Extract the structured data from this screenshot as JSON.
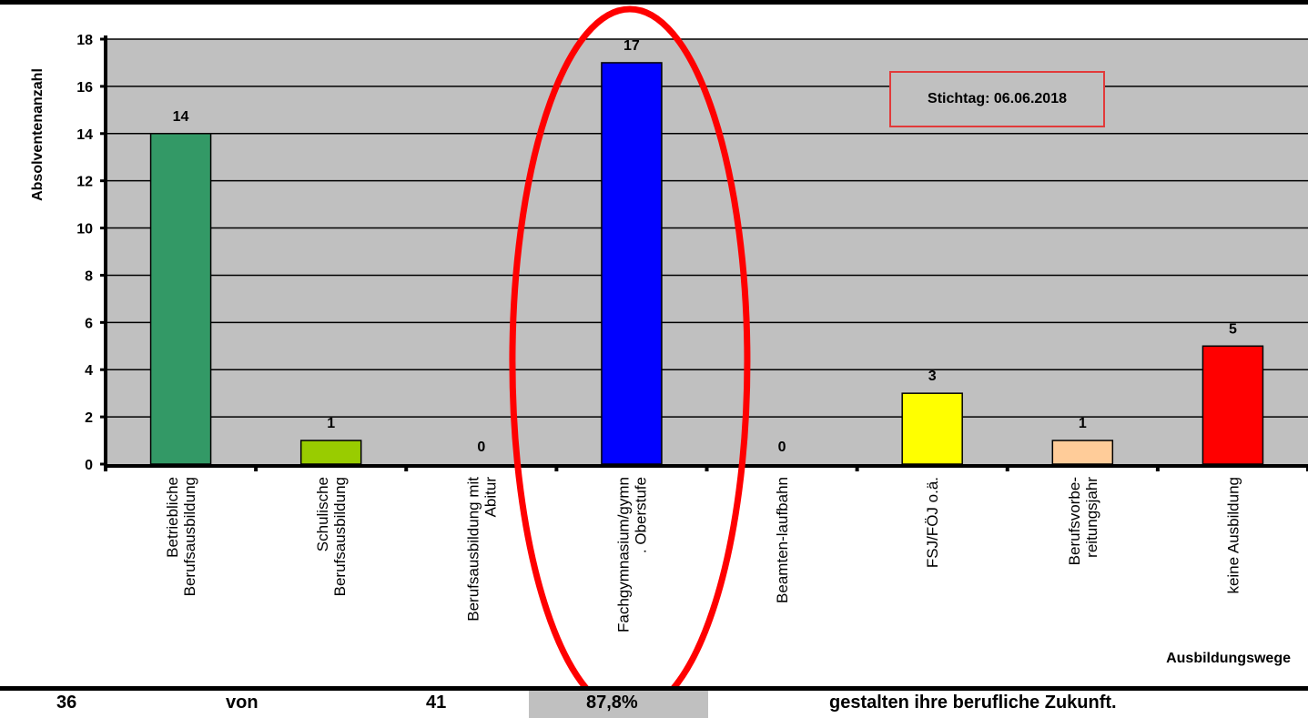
{
  "chart_data": {
    "type": "bar",
    "categories": [
      [
        "Betriebliche",
        "Berufsausbildung"
      ],
      [
        "Schulische",
        "Berufsausbildung"
      ],
      [
        "Berufsausbildung mit",
        "Abitur"
      ],
      [
        "Fachgymnasium/gymn",
        ". Oberstufe"
      ],
      [
        "Beamten-laufbahn"
      ],
      [
        "FSJ/FÖJ o.ä."
      ],
      [
        "Berufsvorbe-",
        "reitungsjahr"
      ],
      [
        "keine Ausbildung"
      ]
    ],
    "values": [
      14,
      1,
      0,
      17,
      0,
      3,
      1,
      5
    ],
    "data_labels": [
      "14",
      "1",
      "0",
      "17",
      "0",
      "3",
      "1",
      "5"
    ],
    "colors": [
      "#339966",
      "#99cc00",
      "#c0c0c0",
      "#0000ff",
      "#c0c0c0",
      "#ffff00",
      "#ffcc99",
      "#ff0000"
    ],
    "ylabel": "Absolventenanzahl",
    "xlabel": "Ausbildungswege",
    "ylim": [
      0,
      18
    ],
    "yticks": [
      0,
      2,
      4,
      6,
      8,
      10,
      12,
      14,
      16,
      18
    ],
    "grid": true,
    "plot_background": "#c0c0c0",
    "highlight": {
      "category_index": 3,
      "shape": "ellipse",
      "color": "#ff0000"
    }
  },
  "annotation": {
    "text": "Stichtag: 06.06.2018",
    "border_color": "#e23a3a"
  },
  "summary_row": {
    "count": "36",
    "word_of": "von",
    "total": "41",
    "percent": "87,8%",
    "text": "gestalten ihre berufliche Zukunft."
  }
}
